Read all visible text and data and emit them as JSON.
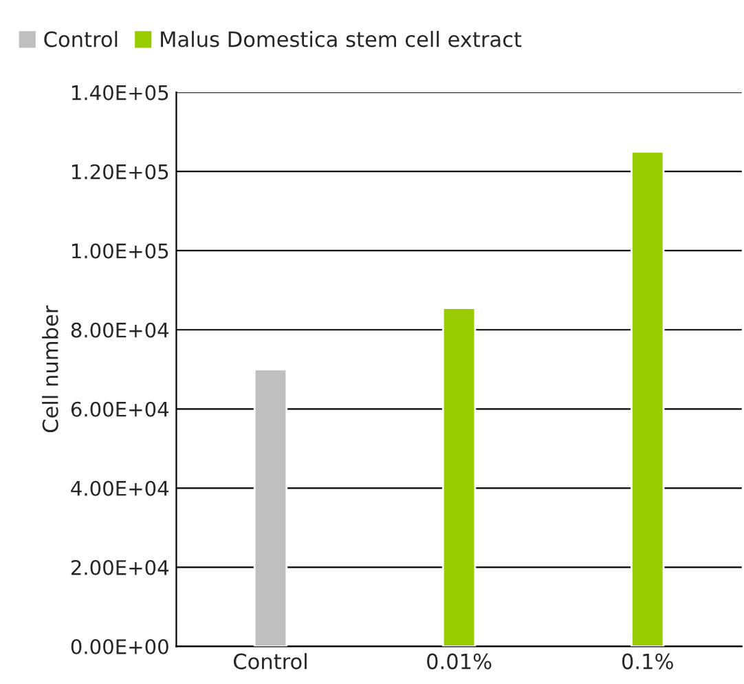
{
  "chart_data": {
    "type": "bar",
    "ylabel": "Cell number",
    "categories": [
      "Control",
      "0.01%",
      "0.1%"
    ],
    "series": [
      {
        "name": "Control",
        "color": "#bfbfbf",
        "values": [
          70000,
          null,
          null
        ]
      },
      {
        "name": "Malus Domestica stem cell extract",
        "color": "#99cc00",
        "values": [
          null,
          85500,
          125000
        ]
      }
    ],
    "ylim": [
      0,
      140000
    ],
    "yticks": [
      {
        "value": 0,
        "label": "0.00E+00"
      },
      {
        "value": 20000,
        "label": "2.00E+04"
      },
      {
        "value": 40000,
        "label": "4.00E+04"
      },
      {
        "value": 60000,
        "label": "6.00E+04"
      },
      {
        "value": 80000,
        "label": "8.00E+04"
      },
      {
        "value": 100000,
        "label": "1.00E+05"
      },
      {
        "value": 120000,
        "label": "1.20E+05"
      },
      {
        "value": 140000,
        "label": "1.40E+05"
      }
    ],
    "grid": "y",
    "legend": "top left"
  }
}
